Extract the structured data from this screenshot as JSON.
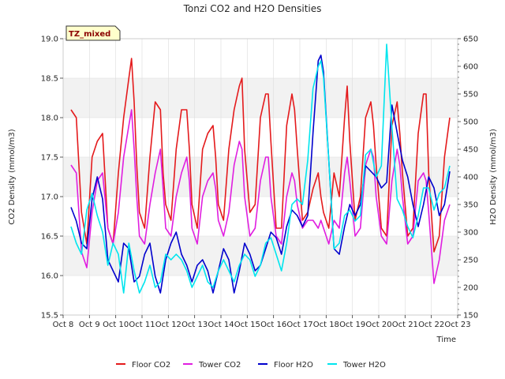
{
  "chart_data": {
    "type": "line",
    "title": "Tonzi CO2 and H2O Densities",
    "site_label": "TZ_mixed",
    "xlabel": "Time",
    "ylabel_left": "CO2 Density (mmol/m3)",
    "ylabel_right": "H2O Density (mmol/m3)",
    "xlim": [
      0,
      15
    ],
    "ylim_left": [
      15.5,
      19.0
    ],
    "ylim_right": [
      150,
      650
    ],
    "x_ticks": [
      "Oct 8",
      "Oct 9",
      "Oct 10",
      "Oct 11",
      "Oct 12",
      "Oct 13",
      "Oct 14",
      "Oct 15",
      "Oct 16",
      "Oct 17",
      "Oct 18",
      "Oct 19",
      "Oct 20",
      "Oct 21",
      "Oct 22",
      "Oct 23"
    ],
    "y_ticks_left": [
      15.5,
      16.0,
      16.5,
      17.0,
      17.5,
      18.0,
      18.5,
      19.0
    ],
    "y_ticks_right": [
      150,
      200,
      250,
      300,
      350,
      400,
      450,
      500,
      550,
      600,
      650
    ],
    "series": [
      {
        "name": "Floor CO2",
        "axis": "left",
        "color": "#e41a1c",
        "x": [
          0.3,
          0.5,
          0.7,
          0.9,
          1.1,
          1.3,
          1.5,
          1.7,
          1.9,
          2.1,
          2.3,
          2.5,
          2.6,
          2.7,
          2.8,
          2.9,
          3.1,
          3.3,
          3.5,
          3.7,
          3.8,
          3.9,
          4.1,
          4.3,
          4.5,
          4.7,
          4.8,
          4.9,
          5.1,
          5.3,
          5.5,
          5.7,
          5.8,
          5.9,
          6.1,
          6.3,
          6.5,
          6.7,
          6.8,
          6.9,
          7.1,
          7.3,
          7.5,
          7.7,
          7.8,
          7.9,
          8.1,
          8.3,
          8.5,
          8.7,
          8.8,
          8.9,
          9.1,
          9.3,
          9.5,
          9.7,
          9.8,
          9.9,
          10.1,
          10.3,
          10.5,
          10.7,
          10.8,
          10.9,
          11.1,
          11.3,
          11.5,
          11.7,
          11.8,
          11.9,
          12.1,
          12.3,
          12.5,
          12.7,
          12.8,
          12.9,
          13.1,
          13.3,
          13.5,
          13.7,
          13.8,
          13.9,
          14.1,
          14.3,
          14.5,
          14.7
        ],
        "values": [
          18.1,
          18.0,
          16.8,
          16.4,
          17.5,
          17.7,
          17.8,
          16.6,
          16.4,
          17.3,
          18.0,
          18.5,
          18.75,
          18.2,
          17.4,
          16.8,
          16.6,
          17.5,
          18.2,
          18.1,
          17.3,
          16.9,
          16.7,
          17.6,
          18.1,
          18.1,
          17.6,
          16.9,
          16.6,
          17.6,
          17.8,
          17.9,
          17.5,
          16.9,
          16.7,
          17.6,
          18.1,
          18.4,
          18.5,
          17.6,
          16.8,
          16.9,
          18.0,
          18.3,
          18.3,
          17.7,
          16.6,
          16.6,
          17.9,
          18.3,
          18.1,
          17.6,
          16.7,
          16.8,
          17.1,
          17.3,
          17.0,
          16.8,
          16.6,
          17.3,
          17.0,
          18.0,
          18.4,
          17.7,
          16.7,
          17.0,
          18.0,
          18.2,
          17.9,
          17.4,
          16.6,
          16.5,
          17.9,
          18.2,
          17.8,
          17.3,
          16.5,
          16.6,
          17.8,
          18.3,
          18.3,
          17.3,
          16.3,
          16.5,
          17.5,
          18.0
        ]
      },
      {
        "name": "Tower CO2",
        "axis": "left",
        "color": "#e01ee0",
        "x": [
          0.3,
          0.5,
          0.7,
          0.9,
          1.1,
          1.3,
          1.5,
          1.7,
          1.9,
          2.1,
          2.3,
          2.5,
          2.6,
          2.7,
          2.8,
          2.9,
          3.1,
          3.3,
          3.5,
          3.7,
          3.8,
          3.9,
          4.1,
          4.3,
          4.5,
          4.7,
          4.8,
          4.9,
          5.1,
          5.3,
          5.5,
          5.7,
          5.8,
          5.9,
          6.1,
          6.3,
          6.5,
          6.7,
          6.8,
          6.9,
          7.1,
          7.3,
          7.5,
          7.7,
          7.8,
          7.9,
          8.1,
          8.3,
          8.5,
          8.7,
          8.8,
          8.9,
          9.1,
          9.3,
          9.5,
          9.7,
          9.8,
          9.9,
          10.1,
          10.3,
          10.5,
          10.7,
          10.8,
          10.9,
          11.1,
          11.3,
          11.5,
          11.7,
          11.8,
          11.9,
          12.1,
          12.3,
          12.5,
          12.7,
          12.8,
          12.9,
          13.1,
          13.3,
          13.5,
          13.7,
          13.8,
          13.9,
          14.1,
          14.3,
          14.5,
          14.7
        ],
        "values": [
          17.4,
          17.3,
          16.3,
          16.1,
          16.8,
          17.2,
          17.3,
          16.6,
          16.4,
          16.8,
          17.5,
          17.9,
          18.1,
          17.6,
          17.0,
          16.5,
          16.4,
          16.9,
          17.3,
          17.6,
          17.1,
          16.6,
          16.5,
          17.0,
          17.3,
          17.5,
          17.2,
          16.6,
          16.4,
          17.0,
          17.2,
          17.3,
          17.1,
          16.7,
          16.5,
          16.8,
          17.4,
          17.7,
          17.6,
          17.0,
          16.5,
          16.6,
          17.2,
          17.5,
          17.5,
          17.0,
          16.5,
          16.4,
          17.0,
          17.3,
          17.2,
          16.9,
          16.6,
          16.7,
          16.7,
          16.6,
          16.7,
          16.6,
          16.4,
          16.7,
          16.6,
          17.3,
          17.5,
          17.2,
          16.5,
          16.6,
          17.4,
          17.6,
          17.5,
          17.0,
          16.5,
          16.4,
          17.2,
          17.6,
          17.4,
          17.0,
          16.4,
          16.5,
          17.2,
          17.3,
          17.2,
          16.8,
          15.9,
          16.2,
          16.7,
          16.9
        ]
      },
      {
        "name": "Floor H2O",
        "axis": "right",
        "color": "#0000cd",
        "x": [
          0.3,
          0.5,
          0.7,
          0.9,
          1.1,
          1.3,
          1.5,
          1.7,
          1.9,
          2.1,
          2.3,
          2.5,
          2.7,
          2.9,
          3.1,
          3.3,
          3.5,
          3.7,
          3.9,
          4.1,
          4.3,
          4.5,
          4.7,
          4.9,
          5.1,
          5.3,
          5.5,
          5.7,
          5.9,
          6.1,
          6.3,
          6.5,
          6.7,
          6.9,
          7.1,
          7.3,
          7.5,
          7.7,
          7.9,
          8.1,
          8.3,
          8.5,
          8.7,
          8.9,
          9.1,
          9.3,
          9.5,
          9.7,
          9.8,
          9.9,
          10.1,
          10.3,
          10.5,
          10.7,
          10.9,
          11.1,
          11.3,
          11.5,
          11.7,
          11.9,
          12.1,
          12.3,
          12.5,
          12.7,
          12.9,
          13.1,
          13.3,
          13.5,
          13.7,
          13.9,
          14.1,
          14.3,
          14.5,
          14.7
        ],
        "values": [
          345,
          320,
          280,
          270,
          360,
          400,
          360,
          250,
          230,
          210,
          280,
          270,
          210,
          220,
          260,
          280,
          220,
          190,
          250,
          280,
          300,
          260,
          240,
          210,
          240,
          250,
          230,
          190,
          230,
          270,
          250,
          190,
          230,
          280,
          260,
          230,
          240,
          270,
          300,
          290,
          260,
          310,
          340,
          330,
          310,
          330,
          480,
          610,
          620,
          590,
          430,
          270,
          260,
          310,
          350,
          330,
          350,
          420,
          410,
          400,
          380,
          390,
          530,
          480,
          430,
          400,
          350,
          310,
          350,
          400,
          380,
          330,
          350,
          410
        ]
      },
      {
        "name": "Tower H2O",
        "axis": "right",
        "color": "#00e5ee",
        "x": [
          0.3,
          0.5,
          0.7,
          0.9,
          1.1,
          1.3,
          1.5,
          1.7,
          1.9,
          2.1,
          2.3,
          2.5,
          2.7,
          2.9,
          3.1,
          3.3,
          3.5,
          3.7,
          3.9,
          4.1,
          4.3,
          4.5,
          4.7,
          4.9,
          5.1,
          5.3,
          5.5,
          5.7,
          5.9,
          6.1,
          6.3,
          6.5,
          6.7,
          6.9,
          7.1,
          7.3,
          7.5,
          7.7,
          7.9,
          8.1,
          8.3,
          8.5,
          8.7,
          8.9,
          9.1,
          9.3,
          9.5,
          9.7,
          9.8,
          9.9,
          10.1,
          10.3,
          10.5,
          10.7,
          10.9,
          11.1,
          11.3,
          11.5,
          11.7,
          11.9,
          12.1,
          12.3,
          12.5,
          12.7,
          12.9,
          13.1,
          13.3,
          13.5,
          13.7,
          13.9,
          14.1,
          14.3,
          14.5,
          14.7
        ],
        "values": [
          310,
          280,
          260,
          340,
          370,
          330,
          300,
          240,
          280,
          260,
          190,
          280,
          230,
          190,
          210,
          240,
          200,
          210,
          260,
          250,
          260,
          250,
          230,
          200,
          220,
          240,
          210,
          200,
          230,
          250,
          230,
          210,
          240,
          260,
          250,
          220,
          240,
          280,
          290,
          260,
          230,
          280,
          350,
          360,
          350,
          430,
          560,
          600,
          610,
          580,
          430,
          270,
          280,
          330,
          340,
          320,
          330,
          440,
          450,
          400,
          420,
          640,
          490,
          360,
          340,
          310,
          290,
          330,
          380,
          380,
          340,
          370,
          380,
          420
        ]
      }
    ]
  }
}
